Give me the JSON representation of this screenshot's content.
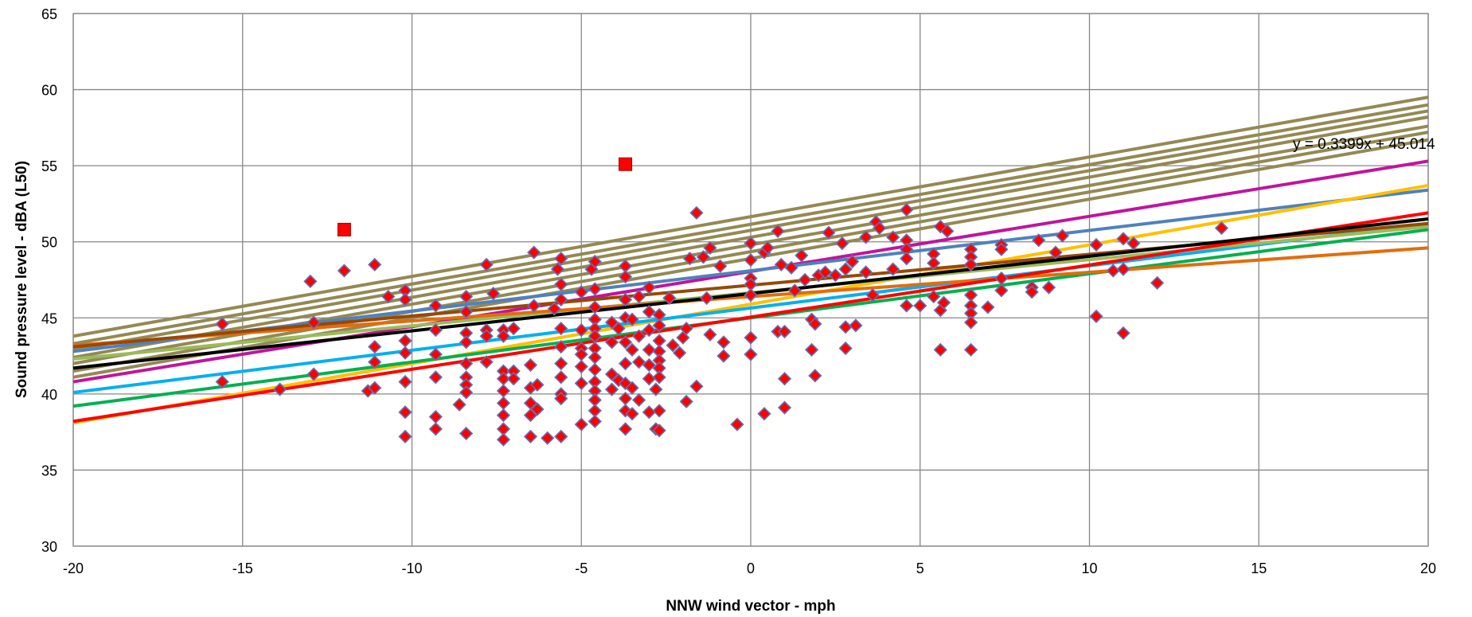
{
  "chart_data": {
    "type": "scatter",
    "title": "",
    "xlabel": "NNW wind vector - mph",
    "ylabel": "Sound pressure level - dBA  (L50)",
    "xlim": [
      -20,
      20
    ],
    "ylim": [
      30,
      65
    ],
    "x_ticks": [
      -20,
      -15,
      -10,
      -5,
      0,
      5,
      10,
      15,
      20
    ],
    "y_ticks": [
      30,
      35,
      40,
      45,
      50,
      55,
      60,
      65
    ],
    "grid": true,
    "legend": "none",
    "trendline_label": "y = 0.3399x + 45.014",
    "point_color": "#ff0000",
    "point_outline_color": "#5b73b8",
    "points": [
      [
        -15.6,
        44.6
      ],
      [
        -15.6,
        40.8
      ],
      [
        -13.9,
        40.3
      ],
      [
        -13,
        47.4
      ],
      [
        -12.9,
        44.7
      ],
      [
        -12.9,
        41.3
      ],
      [
        -12,
        48.1
      ],
      [
        -11.3,
        40.2
      ],
      [
        -11.1,
        48.5
      ],
      [
        -11.1,
        43.1
      ],
      [
        -11.1,
        42.1
      ],
      [
        -11.1,
        40.4
      ],
      [
        -10.7,
        46.4
      ],
      [
        -10.2,
        46.8
      ],
      [
        -10.2,
        46.2
      ],
      [
        -10.2,
        43.5
      ],
      [
        -10.2,
        42.7
      ],
      [
        -10.2,
        40.8
      ],
      [
        -10.2,
        38.8
      ],
      [
        -10.2,
        37.2
      ],
      [
        -9.3,
        45.8
      ],
      [
        -9.3,
        44.2
      ],
      [
        -9.3,
        42.6
      ],
      [
        -9.3,
        41.1
      ],
      [
        -9.3,
        38.5
      ],
      [
        -9.3,
        37.7
      ],
      [
        -8.4,
        46.4
      ],
      [
        -8.4,
        45.4
      ],
      [
        -8.4,
        44
      ],
      [
        -8.4,
        43.4
      ],
      [
        -8.4,
        42
      ],
      [
        -8.4,
        41.1
      ],
      [
        -8.4,
        40.6
      ],
      [
        -8.4,
        40.1
      ],
      [
        -8.4,
        37.4
      ],
      [
        -8.6,
        39.3
      ],
      [
        -7.8,
        48.5
      ],
      [
        -7.8,
        44.2
      ],
      [
        -7.8,
        43.8
      ],
      [
        -7.8,
        42.1
      ],
      [
        -7.6,
        46.6
      ],
      [
        -7.3,
        44.2
      ],
      [
        -7.3,
        43.8
      ],
      [
        -7.3,
        41.5
      ],
      [
        -7.3,
        41
      ],
      [
        -7.3,
        40.2
      ],
      [
        -7.3,
        39.4
      ],
      [
        -7.3,
        38.6
      ],
      [
        -7.3,
        37.7
      ],
      [
        -7.3,
        37
      ],
      [
        -7,
        44.3
      ],
      [
        -7,
        41.5
      ],
      [
        -7,
        41
      ],
      [
        -6.4,
        49.3
      ],
      [
        -6.4,
        45.8
      ],
      [
        -6.5,
        41.9
      ],
      [
        -6.5,
        40.4
      ],
      [
        -6.5,
        39.4
      ],
      [
        -6.5,
        38.6
      ],
      [
        -6.5,
        37.2
      ],
      [
        -6.3,
        40.6
      ],
      [
        -6.3,
        39
      ],
      [
        -6,
        37.1
      ],
      [
        -5.8,
        45.6
      ],
      [
        -5.6,
        48.9
      ],
      [
        -5.7,
        48.2
      ],
      [
        -5.6,
        47.2
      ],
      [
        -5.6,
        46.2
      ],
      [
        -5.6,
        44.3
      ],
      [
        -5.6,
        43.1
      ],
      [
        -5.6,
        42
      ],
      [
        -5.6,
        41.1
      ],
      [
        -5.6,
        40
      ],
      [
        -5.6,
        39.7
      ],
      [
        -5.6,
        37.2
      ],
      [
        -5,
        46.7
      ],
      [
        -5,
        44.2
      ],
      [
        -5,
        43
      ],
      [
        -5,
        42.6
      ],
      [
        -5,
        41.8
      ],
      [
        -5,
        40.7
      ],
      [
        -5,
        38
      ],
      [
        -4.7,
        48.2
      ],
      [
        -4.6,
        48.7
      ],
      [
        -4.6,
        46.9
      ],
      [
        -4.6,
        45.7
      ],
      [
        -4.6,
        44.9
      ],
      [
        -4.6,
        44.3
      ],
      [
        -4.6,
        43.8
      ],
      [
        -4.6,
        43
      ],
      [
        -4.6,
        42.4
      ],
      [
        -4.6,
        41.6
      ],
      [
        -4.6,
        40.8
      ],
      [
        -4.6,
        40.2
      ],
      [
        -4.6,
        39.6
      ],
      [
        -4.6,
        38.9
      ],
      [
        -4.6,
        38.2
      ],
      [
        -4.1,
        44.7
      ],
      [
        -4.1,
        43.4
      ],
      [
        -4.1,
        41.3
      ],
      [
        -4.1,
        40.3
      ],
      [
        -3.9,
        44.3
      ],
      [
        -3.9,
        40.9
      ],
      [
        -3.7,
        48.4
      ],
      [
        -3.7,
        47.7
      ],
      [
        -3.7,
        46.2
      ],
      [
        -3.7,
        45
      ],
      [
        -3.7,
        43.4
      ],
      [
        -3.7,
        42
      ],
      [
        -3.7,
        40.7
      ],
      [
        -3.7,
        39.7
      ],
      [
        -3.7,
        38.9
      ],
      [
        -3.7,
        37.7
      ],
      [
        -3.5,
        44.9
      ],
      [
        -3.5,
        42.9
      ],
      [
        -3.5,
        40.4
      ],
      [
        -3.5,
        38.7
      ],
      [
        -3.3,
        46.4
      ],
      [
        -3.3,
        43.8
      ],
      [
        -3.3,
        42.1
      ],
      [
        -3.3,
        39.6
      ],
      [
        -3,
        47
      ],
      [
        -3,
        45.4
      ],
      [
        -3,
        44.2
      ],
      [
        -3,
        42.9
      ],
      [
        -3,
        41.9
      ],
      [
        -3,
        41
      ],
      [
        -3,
        38.8
      ],
      [
        -2.8,
        40.3
      ],
      [
        -2.8,
        37.7
      ],
      [
        -2.7,
        45.2
      ],
      [
        -2.7,
        44.5
      ],
      [
        -2.7,
        43.5
      ],
      [
        -2.7,
        42.8
      ],
      [
        -2.7,
        42.2
      ],
      [
        -2.7,
        41.7
      ],
      [
        -2.7,
        41.1
      ],
      [
        -2.7,
        38.9
      ],
      [
        -2.7,
        37.6
      ],
      [
        -2.4,
        46.3
      ],
      [
        -2.3,
        43.2
      ],
      [
        -2.1,
        42.7
      ],
      [
        -2,
        43.7
      ],
      [
        -1.9,
        44.3
      ],
      [
        -1.9,
        39.5
      ],
      [
        -1.8,
        48.9
      ],
      [
        -1.6,
        51.9
      ],
      [
        -1.6,
        40.5
      ],
      [
        -1.4,
        49
      ],
      [
        -1.3,
        46.3
      ],
      [
        -1.2,
        49.6
      ],
      [
        -1.2,
        43.9
      ],
      [
        -0.9,
        48.4
      ],
      [
        -0.8,
        43.4
      ],
      [
        -0.8,
        42.5
      ],
      [
        -0.4,
        38
      ],
      [
        0,
        49.9
      ],
      [
        0,
        48.8
      ],
      [
        0,
        47.6
      ],
      [
        0,
        47.2
      ],
      [
        0,
        46.5
      ],
      [
        0,
        43.7
      ],
      [
        0,
        42.6
      ],
      [
        0.4,
        49.3
      ],
      [
        0.4,
        38.7
      ],
      [
        0.5,
        49.6
      ],
      [
        0.8,
        50.7
      ],
      [
        0.8,
        44.1
      ],
      [
        0.9,
        48.5
      ],
      [
        1,
        44.1
      ],
      [
        1,
        41
      ],
      [
        1,
        39.1
      ],
      [
        1.2,
        48.3
      ],
      [
        1.3,
        46.8
      ],
      [
        1.5,
        49.1
      ],
      [
        1.6,
        47.5
      ],
      [
        1.8,
        44.9
      ],
      [
        1.9,
        44.6
      ],
      [
        1.8,
        42.9
      ],
      [
        1.9,
        41.2
      ],
      [
        2,
        47.8
      ],
      [
        2.2,
        48
      ],
      [
        2.3,
        50.6
      ],
      [
        2.5,
        47.8
      ],
      [
        2.7,
        49.9
      ],
      [
        2.8,
        48.2
      ],
      [
        2.8,
        44.4
      ],
      [
        2.8,
        43
      ],
      [
        3.1,
        44.5
      ],
      [
        3,
        48.7
      ],
      [
        3.4,
        50.3
      ],
      [
        3.4,
        48
      ],
      [
        3.6,
        46.5
      ],
      [
        3.7,
        51.3
      ],
      [
        3.8,
        50.9
      ],
      [
        4.2,
        50.3
      ],
      [
        4.2,
        48.2
      ],
      [
        4.6,
        52.1
      ],
      [
        4.6,
        50.1
      ],
      [
        4.6,
        49.5
      ],
      [
        4.6,
        48.9
      ],
      [
        4.6,
        45.8
      ],
      [
        5,
        45.8
      ],
      [
        5.4,
        49.2
      ],
      [
        5.4,
        48.6
      ],
      [
        5.4,
        46.4
      ],
      [
        5.6,
        51
      ],
      [
        5.6,
        45.5
      ],
      [
        5.6,
        42.9
      ],
      [
        5.7,
        46
      ],
      [
        5.8,
        50.7
      ],
      [
        6.5,
        49.5
      ],
      [
        6.5,
        49
      ],
      [
        6.5,
        48.5
      ],
      [
        6.5,
        46.5
      ],
      [
        6.5,
        45.8
      ],
      [
        6.5,
        45.3
      ],
      [
        6.5,
        44.7
      ],
      [
        6.5,
        42.9
      ],
      [
        7,
        45.7
      ],
      [
        7.4,
        49.8
      ],
      [
        7.4,
        49.5
      ],
      [
        7.4,
        47.6
      ],
      [
        7.4,
        46.8
      ],
      [
        8.3,
        47
      ],
      [
        8.3,
        46.7
      ],
      [
        8.5,
        50.1
      ],
      [
        8.8,
        47
      ],
      [
        9,
        49.3
      ],
      [
        9.2,
        50.4
      ],
      [
        10.2,
        49.8
      ],
      [
        10.2,
        45.1
      ],
      [
        10.7,
        48.1
      ],
      [
        11,
        50.2
      ],
      [
        11,
        48.2
      ],
      [
        11,
        44
      ],
      [
        11.3,
        49.9
      ],
      [
        12,
        47.3
      ],
      [
        13.9,
        50.9
      ]
    ],
    "outlier_points": [
      [
        -12,
        50.8
      ],
      [
        -3.7,
        55.1
      ]
    ],
    "lines": [
      {
        "color": "#938953",
        "x": [
          -20,
          20
        ],
        "y": [
          43.8,
          59.5
        ]
      },
      {
        "color": "#938953",
        "x": [
          -20,
          20
        ],
        "y": [
          43.3,
          59
        ]
      },
      {
        "color": "#938953",
        "x": [
          -20,
          20
        ],
        "y": [
          42.9,
          58.6
        ]
      },
      {
        "color": "#938953",
        "x": [
          -20,
          20
        ],
        "y": [
          42.4,
          58.2
        ]
      },
      {
        "color": "#938953",
        "x": [
          -20,
          20
        ],
        "y": [
          42,
          57.6
        ]
      },
      {
        "color": "#938953",
        "x": [
          -20,
          20
        ],
        "y": [
          41.5,
          57.2
        ]
      },
      {
        "color": "#938953",
        "x": [
          -20,
          20
        ],
        "y": [
          41.1,
          56.7
        ]
      },
      {
        "color": "#c0159b",
        "x": [
          -20,
          20
        ],
        "y": [
          40.8,
          55.3
        ]
      },
      {
        "color": "#4f81bd",
        "x": [
          -20,
          20
        ],
        "y": [
          42.8,
          53.4
        ]
      },
      {
        "color": "#ffc000",
        "x": [
          -20,
          20
        ],
        "y": [
          38.1,
          53.7
        ]
      },
      {
        "color": "#00b0f0",
        "x": [
          -20,
          20
        ],
        "y": [
          40.1,
          51.2
        ]
      },
      {
        "color": "#00b050",
        "x": [
          -20,
          20
        ],
        "y": [
          39.2,
          50.8
        ]
      },
      {
        "color": "#9bbb59",
        "x": [
          -20,
          20
        ],
        "y": [
          42.3,
          51
        ]
      },
      {
        "color": "#e46c0a",
        "x": [
          -20,
          20
        ],
        "y": [
          43.2,
          49.6
        ]
      },
      {
        "color": "#984807",
        "x": [
          -20,
          20
        ],
        "y": [
          43.1,
          51.2
        ]
      },
      {
        "color": "#ff0000",
        "x": [
          -20,
          20
        ],
        "y": [
          38.2,
          51.9
        ]
      },
      {
        "color": "#000000",
        "x": [
          -20,
          20
        ],
        "y": [
          41.7,
          51.5
        ]
      }
    ]
  }
}
